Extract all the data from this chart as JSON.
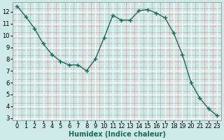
{
  "x": [
    0,
    1,
    2,
    3,
    4,
    5,
    6,
    7,
    8,
    9,
    10,
    11,
    12,
    13,
    14,
    15,
    16,
    17,
    18,
    19,
    20,
    21,
    22,
    23
  ],
  "y": [
    12.5,
    11.6,
    10.6,
    9.3,
    8.4,
    7.8,
    7.5,
    7.5,
    7.0,
    8.0,
    9.8,
    11.7,
    11.3,
    11.3,
    12.1,
    12.2,
    11.9,
    11.5,
    10.2,
    8.4,
    6.0,
    4.7,
    3.8,
    3.2
  ],
  "xlabel": "Humidex (Indice chaleur)",
  "line_color": "#1a6b5a",
  "background_color": "#ceeae7",
  "grid_major_color": "#aed4d0",
  "grid_minor_color": "#e8c8c8",
  "ylim": [
    2.8,
    12.8
  ],
  "xlim": [
    -0.5,
    23.5
  ],
  "yticks": [
    3,
    4,
    5,
    6,
    7,
    8,
    9,
    10,
    11,
    12
  ],
  "xticks": [
    0,
    1,
    2,
    3,
    4,
    5,
    6,
    7,
    8,
    9,
    10,
    11,
    12,
    13,
    14,
    15,
    16,
    17,
    18,
    19,
    20,
    21,
    22,
    23
  ],
  "marker": "+",
  "marker_size": 4,
  "line_width": 1.0,
  "xlabel_fontsize": 7,
  "tick_fontsize": 6
}
